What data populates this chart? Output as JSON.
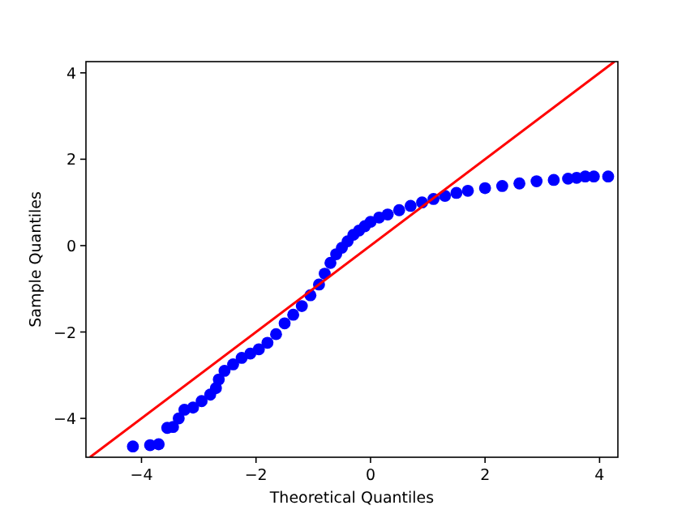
{
  "chart_data": {
    "type": "scatter",
    "xlabel": "Theoretical Quantiles",
    "ylabel": "Sample Quantiles",
    "xlim": [
      -4.97,
      4.32
    ],
    "ylim": [
      -4.9,
      4.26
    ],
    "xticks": [
      {
        "value": -4,
        "label": "−4"
      },
      {
        "value": -2,
        "label": "−2"
      },
      0,
      2,
      4
    ],
    "yticks": [
      {
        "value": -4,
        "label": "−4"
      },
      {
        "value": -2,
        "label": "−2"
      },
      0,
      2,
      4
    ],
    "grid": false,
    "marker": "circle",
    "series": [
      {
        "color": "#0000ff",
        "x": [
          -4.15,
          -3.85,
          -3.7,
          -3.55,
          -3.45,
          -3.35,
          -3.25,
          -3.1,
          -2.95,
          -2.8,
          -2.7,
          -2.65,
          -2.55,
          -2.4,
          -2.25,
          -2.1,
          -1.95,
          -1.8,
          -1.65,
          -1.5,
          -1.35,
          -1.2,
          -1.05,
          -0.9,
          -0.8,
          -0.7,
          -0.6,
          -0.5,
          -0.4,
          -0.3,
          -0.2,
          -0.1,
          0,
          0.15,
          0.3,
          0.5,
          0.7,
          0.9,
          1.1,
          1.3,
          1.5,
          1.7,
          2.0,
          2.3,
          2.6,
          2.9,
          3.2,
          3.45,
          3.6,
          3.75,
          3.9,
          4.15
        ],
        "values": [
          -4.65,
          -4.62,
          -4.6,
          -4.22,
          -4.2,
          -4.0,
          -3.8,
          -3.75,
          -3.6,
          -3.45,
          -3.3,
          -3.1,
          -2.9,
          -2.75,
          -2.6,
          -2.5,
          -2.4,
          -2.25,
          -2.05,
          -1.8,
          -1.6,
          -1.4,
          -1.15,
          -0.9,
          -0.65,
          -0.4,
          -0.2,
          -0.05,
          0.1,
          0.25,
          0.35,
          0.45,
          0.55,
          0.65,
          0.72,
          0.82,
          0.92,
          1.0,
          1.08,
          1.15,
          1.22,
          1.27,
          1.33,
          1.38,
          1.44,
          1.49,
          1.52,
          1.55,
          1.57,
          1.6,
          1.6,
          1.6
        ]
      },
      {
        "type": "line",
        "color": "#ff0000",
        "x": [
          -4.9,
          4.26
        ],
        "values": [
          -4.9,
          4.26
        ],
        "marker": "none"
      }
    ]
  }
}
